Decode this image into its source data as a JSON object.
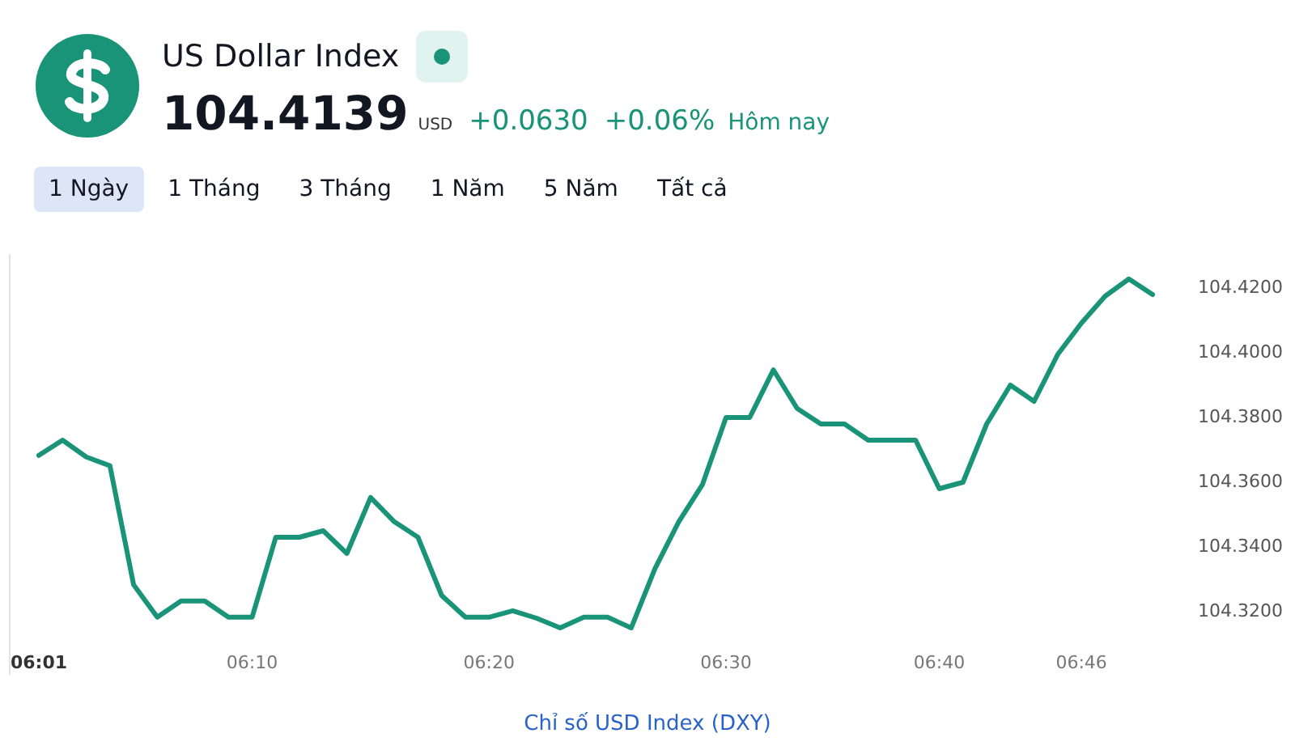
{
  "chart_data": {
    "type": "line",
    "title": "US Dollar Index",
    "annotations": [
      "104.4139",
      "USD",
      "+0.0630",
      "+0.06%",
      "Hôm nay",
      "1 Ngày",
      "1 Tháng",
      "3 Tháng",
      "1 Năm",
      "5 Năm",
      "Tất cả",
      "Chỉ số USD Index (DXY)"
    ],
    "categories": [
      "06:01",
      null,
      null,
      null,
      null,
      null,
      null,
      null,
      null,
      "06:10",
      null,
      null,
      null,
      null,
      null,
      null,
      null,
      null,
      null,
      "06:20",
      null,
      null,
      null,
      null,
      null,
      null,
      null,
      null,
      null,
      "06:30",
      null,
      null,
      null,
      null,
      null,
      null,
      null,
      null,
      "06:40",
      null,
      null,
      null,
      null,
      null,
      "06:46",
      null,
      null,
      null
    ],
    "series": [
      {
        "color": "#1a9479",
        "values": [
          104.3678,
          104.3725,
          104.3673,
          104.3646,
          104.3278,
          104.3178,
          104.3228,
          104.3228,
          104.3178,
          104.3178,
          104.3425,
          104.3425,
          104.3445,
          104.3375,
          104.3548,
          104.3473,
          104.3425,
          104.3245,
          104.3178,
          104.3178,
          104.3198,
          104.3175,
          104.3145,
          104.3178,
          104.3178,
          104.3145,
          104.3328,
          104.3472,
          104.3587,
          104.3795,
          104.3795,
          104.3942,
          104.3823,
          104.3775,
          104.3775,
          104.3725,
          104.3725,
          104.3725,
          104.3575,
          104.3595,
          104.3775,
          104.3895,
          104.3845,
          104.399,
          104.4087,
          104.417,
          104.4223,
          104.4175
        ]
      }
    ],
    "ylim": [
      104.3,
      104.43
    ],
    "yticks": [
      {
        "value": 104.32,
        "label": "104.3200"
      },
      {
        "value": 104.34,
        "label": "104.3400"
      },
      {
        "value": 104.36,
        "label": "104.3600"
      },
      {
        "value": 104.38,
        "label": "104.3800"
      },
      {
        "value": 104.4,
        "label": "104.4000"
      },
      {
        "value": 104.42,
        "label": "104.4200"
      }
    ],
    "marker": "none",
    "line_style": "solid"
  }
}
